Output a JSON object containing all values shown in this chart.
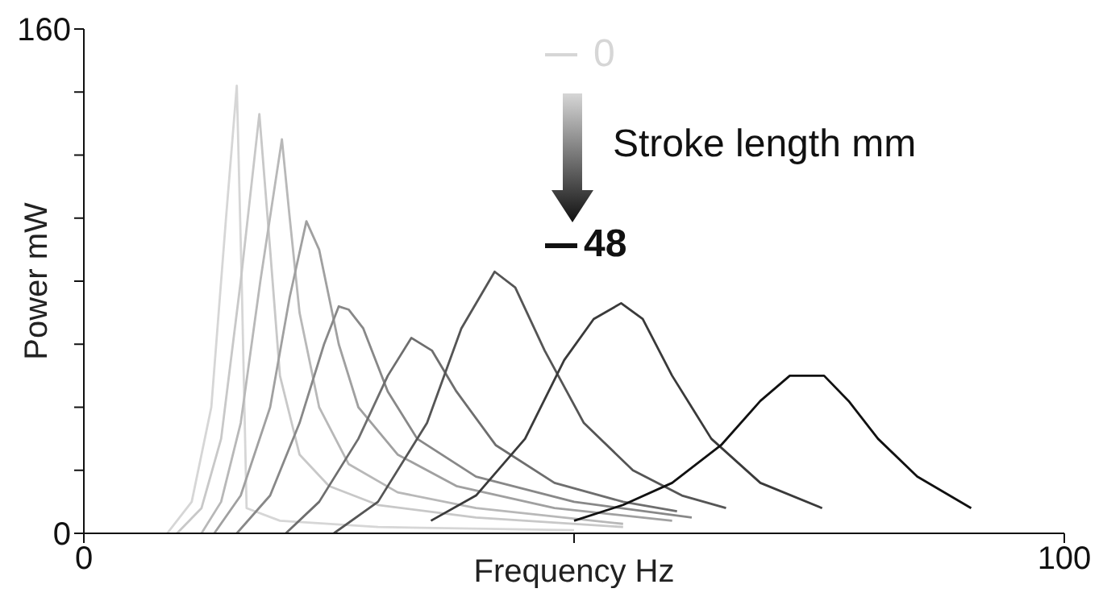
{
  "chart_data": {
    "type": "line",
    "xlabel": "Frequency    Hz",
    "ylabel": "Power    mW",
    "legend_title": "Stroke length mm",
    "legend": "top right",
    "marker": "none",
    "line_style": "solid",
    "xlim": [
      0,
      100
    ],
    "xticks": [
      0,
      {
        "value": 50,
        "label": null
      },
      100
    ],
    "ylim": [
      0,
      160
    ],
    "yticks": [
      0,
      {
        "value": 20,
        "label": null
      },
      {
        "value": 40,
        "label": null
      },
      {
        "value": 60,
        "label": null
      },
      {
        "value": 80,
        "label": null
      },
      {
        "value": 100,
        "label": null
      },
      {
        "value": 120,
        "label": null
      },
      {
        "value": 140,
        "label": null
      },
      160
    ],
    "series": [
      {
        "name": "0",
        "color": "#d6d6d6",
        "x": [
          8.5,
          11,
          13,
          14.5,
          15.6,
          16.1,
          16.6,
          20,
          30,
          50
        ],
        "values": [
          0,
          10,
          40,
          100,
          142,
          80,
          8,
          4,
          2,
          1
        ]
      },
      {
        "color": "#c8c8c8",
        "x": [
          9.5,
          12,
          14,
          16,
          17.9,
          19,
          20,
          22,
          25,
          30,
          40,
          55
        ],
        "values": [
          0,
          8,
          30,
          80,
          133,
          90,
          50,
          25,
          15,
          9,
          5,
          2
        ]
      },
      {
        "color": "#b8b8b8",
        "x": [
          12,
          14,
          16,
          18,
          20.2,
          21,
          22,
          24,
          27,
          32,
          40,
          55
        ],
        "values": [
          0,
          10,
          35,
          80,
          125,
          100,
          70,
          40,
          22,
          13,
          8,
          3
        ]
      },
      {
        "color": "#a0a0a0",
        "x": [
          13.3,
          16,
          19,
          21,
          22.7,
          24,
          26,
          28,
          32,
          38,
          48,
          60
        ],
        "values": [
          0,
          12,
          40,
          75,
          99,
          90,
          60,
          40,
          25,
          15,
          8,
          4
        ]
      },
      {
        "color": "#888888",
        "x": [
          15.6,
          19,
          22,
          24.5,
          26,
          27,
          28.5,
          31,
          34,
          40,
          50,
          62
        ],
        "values": [
          0,
          12,
          35,
          60,
          72,
          71,
          65,
          45,
          30,
          18,
          10,
          5
        ]
      },
      {
        "color": "#6e6e6e",
        "x": [
          20.6,
          24,
          28,
          31,
          33.4,
          35.5,
          38,
          42,
          48,
          55,
          60.5
        ],
        "values": [
          0,
          10,
          30,
          50,
          62,
          58,
          45,
          28,
          16,
          10,
          7
        ]
      },
      {
        "color": "#555555",
        "x": [
          25.5,
          30,
          35,
          38.5,
          41.9,
          44,
          47,
          51,
          56,
          61,
          65.5
        ],
        "values": [
          0,
          10,
          35,
          65,
          83,
          78,
          58,
          35,
          20,
          12,
          8
        ]
      },
      {
        "color": "#3a3a3a",
        "x": [
          35.4,
          40,
          45,
          49,
          52,
          54.8,
          57,
          60,
          64,
          69,
          75.3
        ],
        "values": [
          4,
          12,
          30,
          55,
          68,
          73,
          68,
          50,
          30,
          16,
          8
        ]
      },
      {
        "name": "48",
        "color": "#111111",
        "x": [
          50,
          55,
          60,
          65,
          69,
          72,
          75.5,
          78,
          81,
          85,
          90.5
        ],
        "values": [
          4,
          9,
          16,
          28,
          42,
          50,
          50,
          42,
          30,
          18,
          8
        ]
      }
    ]
  }
}
